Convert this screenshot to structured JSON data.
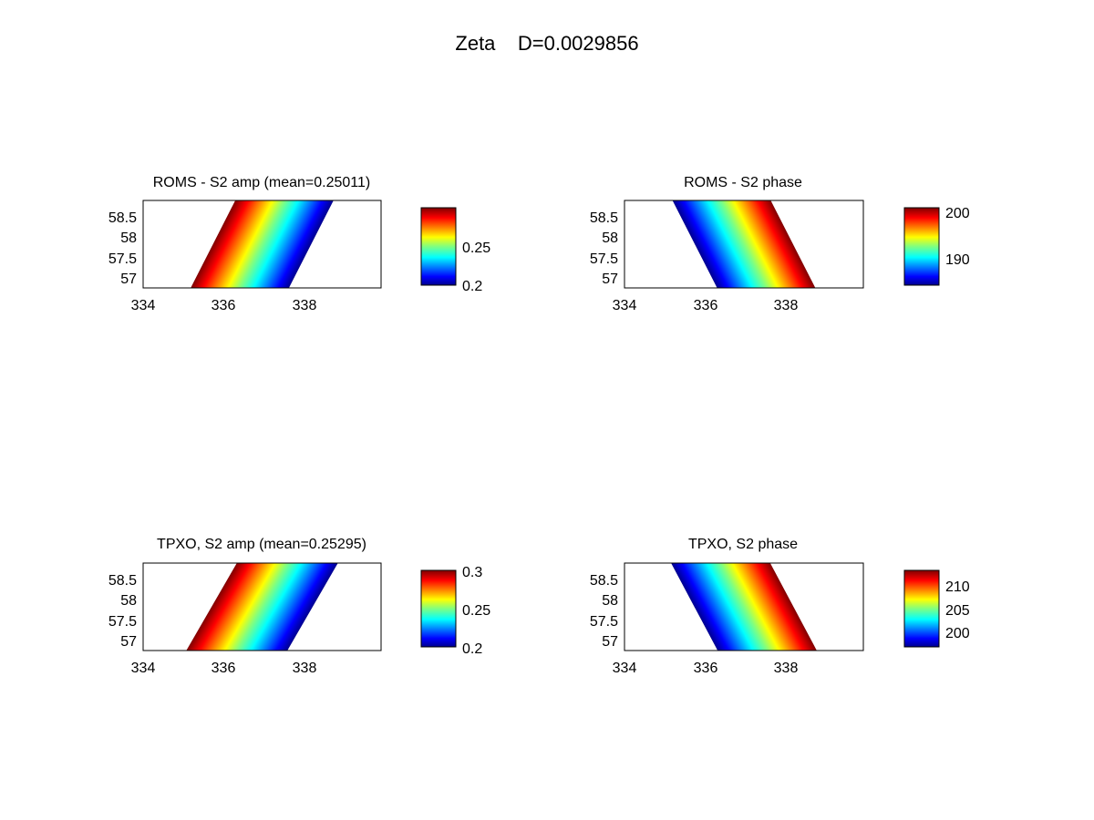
{
  "figure": {
    "suptitle": "Zeta    D=0.0029856"
  },
  "colormap": "jet",
  "chart_data": [
    {
      "type": "heatmap",
      "title": "ROMS - S2 amp (mean=0.25011)",
      "x_ticks": [
        "334",
        "336",
        "338"
      ],
      "y_ticks": [
        "58.5",
        "58",
        "57.5",
        "57"
      ],
      "xlim": [
        334,
        339.9
      ],
      "ylim": [
        56.8,
        58.9
      ],
      "gradient": {
        "low_corner": "bottom-left",
        "high_corner": "top-right"
      },
      "colorbar": {
        "ticks": [
          "0.25",
          "0.2"
        ],
        "range": [
          0.2,
          0.3
        ]
      }
    },
    {
      "type": "heatmap",
      "title": "ROMS - S2 phase",
      "x_ticks": [
        "334",
        "336",
        "338"
      ],
      "y_ticks": [
        "58.5",
        "58",
        "57.5",
        "57"
      ],
      "xlim": [
        334,
        339.9
      ],
      "ylim": [
        56.8,
        58.9
      ],
      "gradient": {
        "low_corner": "bottom-right",
        "high_corner": "top-left"
      },
      "colorbar": {
        "ticks": [
          "200",
          "190"
        ],
        "range": [
          186,
          201
        ]
      }
    },
    {
      "type": "heatmap",
      "title": "TPXO, S2 amp (mean=0.25295)",
      "x_ticks": [
        "334",
        "336",
        "338"
      ],
      "y_ticks": [
        "58.5",
        "58",
        "57.5",
        "57"
      ],
      "xlim": [
        334,
        339.9
      ],
      "ylim": [
        56.8,
        58.9
      ],
      "gradient": {
        "low_corner": "bottom-left",
        "high_corner": "top-right"
      },
      "colorbar": {
        "ticks": [
          "0.3",
          "0.25",
          "0.2"
        ],
        "range": [
          0.2,
          0.3
        ]
      }
    },
    {
      "type": "heatmap",
      "title": "TPXO, S2 phase",
      "x_ticks": [
        "334",
        "336",
        "338"
      ],
      "y_ticks": [
        "58.5",
        "58",
        "57.5",
        "57"
      ],
      "xlim": [
        334,
        339.9
      ],
      "ylim": [
        56.8,
        58.9
      ],
      "gradient": {
        "low_corner": "bottom-right",
        "high_corner": "top-left"
      },
      "colorbar": {
        "ticks": [
          "210",
          "205",
          "200"
        ],
        "range": [
          197,
          213
        ]
      }
    }
  ]
}
